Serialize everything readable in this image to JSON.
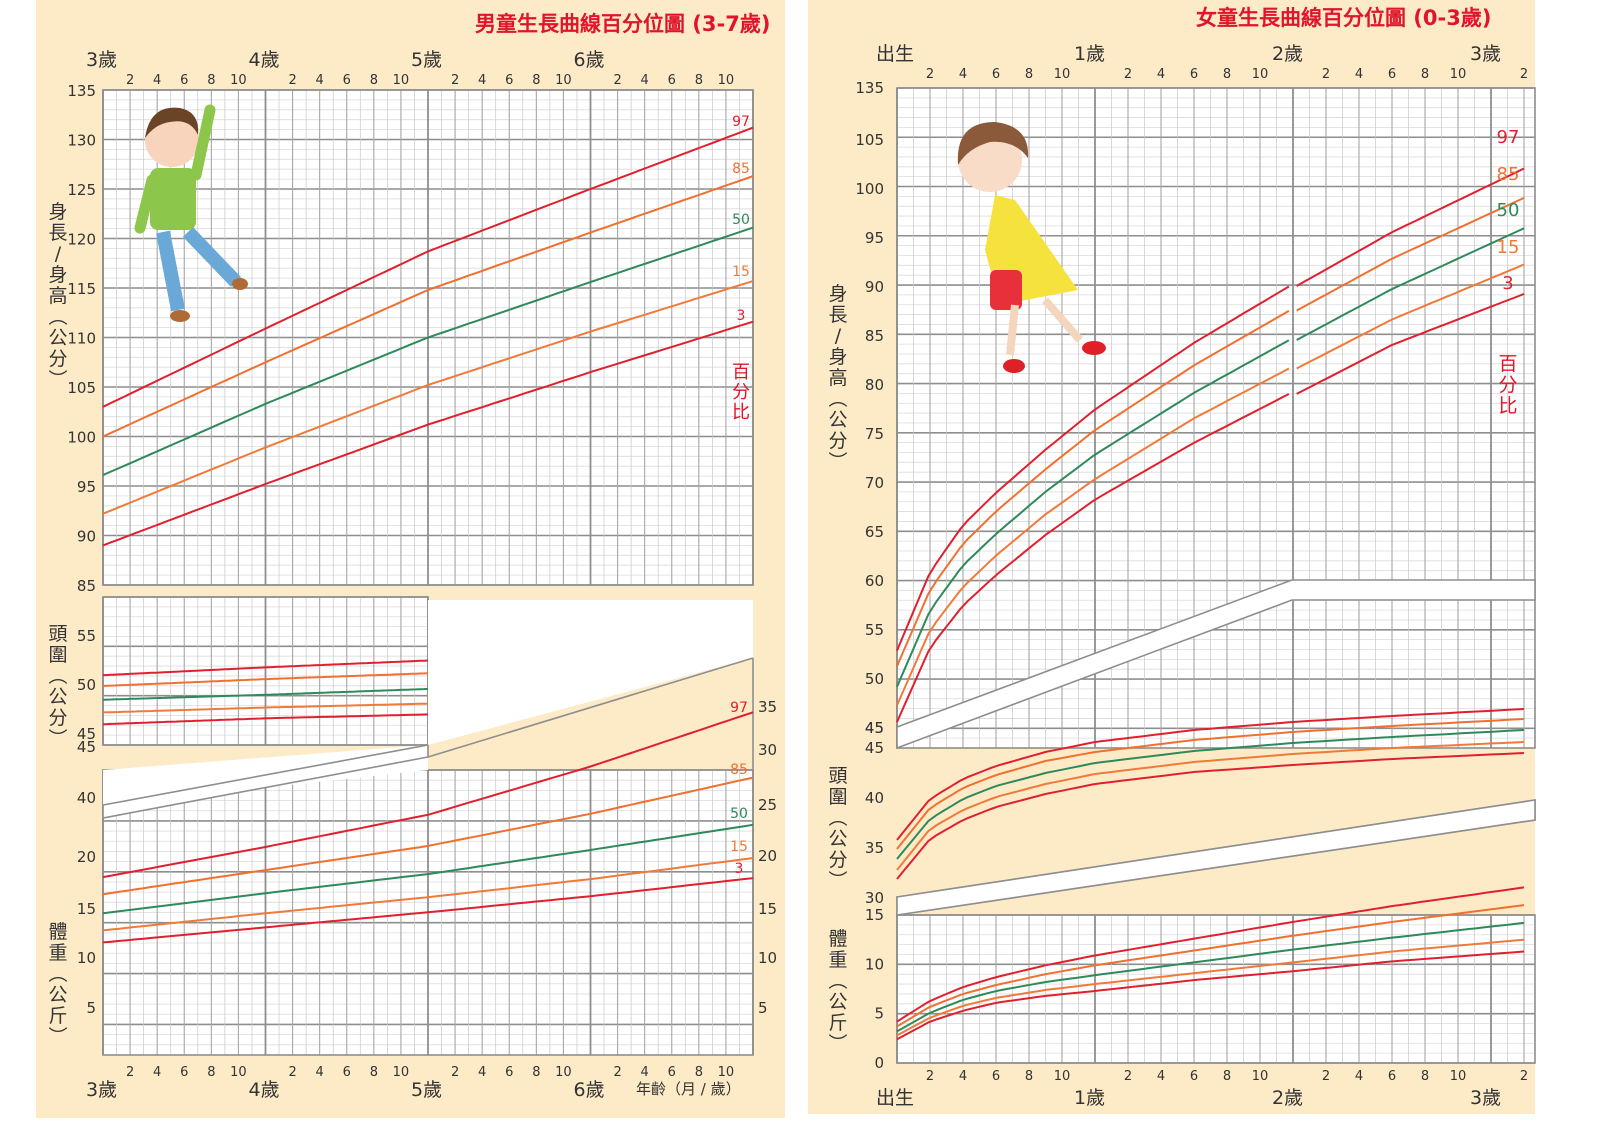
{
  "colors": {
    "background": "#fdebc8",
    "grid_major": "#8e8e8e",
    "grid_minor": "#c8c8c8",
    "grid_minor_h": "#dcdcdc",
    "p97": "#e0202e",
    "p85": "#f07030",
    "p50": "#2e8a5a",
    "p15": "#f07a3a",
    "p3": "#e0202e",
    "title": "#e0142a",
    "axis_text": "#333333"
  },
  "boy_chart": {
    "title": "男童生長曲線百分位圖 (3-7歲)",
    "year_labels_top": [
      "3歲",
      "4歲",
      "5歲",
      "6歲"
    ],
    "year_labels_bottom": [
      "3歲",
      "4歲",
      "5歲",
      "6歲"
    ],
    "month_ticks": [
      "2",
      "4",
      "6",
      "8",
      "10"
    ],
    "x_axis_label": "年齡（月 / 歲）",
    "height_axis_label": "身長/身高(公分)",
    "head_axis_label": "頭圍(公分)",
    "weight_axis_label": "體重(公斤)",
    "percentile_caption": "百分比",
    "height_ticks": [
      "135",
      "130",
      "125",
      "120",
      "115",
      "110",
      "105",
      "100",
      "95",
      "90",
      "85"
    ],
    "head_ticks": [
      "55",
      "50",
      "45"
    ],
    "weight_ticks_left": [
      "45",
      "40",
      "20",
      "15",
      "10",
      "5"
    ],
    "weight_ticks_right": [
      "35",
      "30",
      "25",
      "20",
      "15",
      "10",
      "5"
    ],
    "percentiles": [
      "97",
      "85",
      "50",
      "15",
      "3"
    ]
  },
  "girl_chart": {
    "title": "女童生長曲線百分位圖 (0-3歲)",
    "year_labels_top": [
      "出生",
      "1歲",
      "2歲",
      "3歲"
    ],
    "year_labels_bottom": [
      "出生",
      "1歲",
      "2歲",
      "3歲"
    ],
    "month_ticks": [
      "2",
      "4",
      "6",
      "8",
      "10"
    ],
    "trailing_tick": "2",
    "height_axis_label": "身長/身高(公分)",
    "head_axis_label": "頭圍(公分)",
    "weight_axis_label": "體重(公斤)",
    "percentile_caption": "百分比",
    "height_ticks": [
      "135",
      "105",
      "100",
      "95",
      "90",
      "85",
      "80",
      "75",
      "70",
      "65",
      "60",
      "55",
      "50",
      "45"
    ],
    "head_ticks": [
      "45",
      "40",
      "35",
      "30"
    ],
    "weight_ticks": [
      "15",
      "10",
      "5",
      "0"
    ],
    "percentiles": [
      "97",
      "85",
      "50",
      "15",
      "3"
    ]
  },
  "chart_data": [
    {
      "type": "line",
      "title": "男童生長曲線百分位圖 (3-7歲) — 身長/身高",
      "xlabel": "年齡（月 / 歲）",
      "ylabel": "身長/身高(公分)",
      "x_unit": "months",
      "x": [
        36,
        48,
        60,
        72,
        84
      ],
      "ylim": [
        85,
        135
      ],
      "series": [
        {
          "name": "97",
          "values": [
            103.0,
            110.9,
            118.7,
            125.0,
            131.2
          ]
        },
        {
          "name": "85",
          "values": [
            100.0,
            107.5,
            114.8,
            120.6,
            126.3
          ]
        },
        {
          "name": "50",
          "values": [
            96.1,
            103.3,
            110.0,
            115.6,
            121.1
          ]
        },
        {
          "name": "15",
          "values": [
            92.2,
            98.9,
            105.2,
            110.6,
            115.7
          ]
        },
        {
          "name": "3",
          "values": [
            89.0,
            95.2,
            101.2,
            106.5,
            111.6
          ]
        }
      ],
      "grid": true,
      "legend_position": "right-inline"
    },
    {
      "type": "line",
      "title": "男童生長曲線百分位圖 (3-7歲) — 頭圍",
      "ylabel": "頭圍(公分)",
      "x_unit": "months",
      "x": [
        36,
        48,
        60
      ],
      "ylim": [
        45,
        57
      ],
      "series": [
        {
          "name": "97",
          "values": [
            51.0,
            51.8,
            52.5
          ]
        },
        {
          "name": "85",
          "values": [
            49.9,
            50.6,
            51.2
          ]
        },
        {
          "name": "50",
          "values": [
            48.5,
            49.0,
            49.6
          ]
        },
        {
          "name": "15",
          "values": [
            47.2,
            47.7,
            48.1
          ]
        },
        {
          "name": "3",
          "values": [
            46.0,
            46.6,
            47.0
          ]
        }
      ],
      "grid": true
    },
    {
      "type": "line",
      "title": "男童生長曲線百分位圖 (3-7歲) — 體重",
      "ylabel": "體重(公斤)",
      "x_unit": "months",
      "x": [
        36,
        48,
        60,
        72,
        84
      ],
      "ylim": [
        0,
        35
      ],
      "series": [
        {
          "name": "97",
          "values": [
            18.0,
            21.0,
            24.2,
            29.0,
            34.4
          ]
        },
        {
          "name": "85",
          "values": [
            16.3,
            18.7,
            21.1,
            24.3,
            27.9
          ]
        },
        {
          "name": "50",
          "values": [
            14.4,
            16.4,
            18.3,
            20.7,
            23.2
          ]
        },
        {
          "name": "15",
          "values": [
            12.7,
            14.4,
            16.0,
            17.8,
            19.9
          ]
        },
        {
          "name": "3",
          "values": [
            11.5,
            13.0,
            14.5,
            16.1,
            17.9
          ]
        }
      ],
      "grid": true
    },
    {
      "type": "line",
      "title": "女童生長曲線百分位圖 (0-3歲) — 身長/身高",
      "ylabel": "身長/身高(公分)",
      "x_unit": "months",
      "x": [
        0,
        2,
        4,
        6,
        9,
        12,
        18,
        24,
        30,
        38
      ],
      "ylim": [
        45,
        105
      ],
      "series": [
        {
          "name": "97",
          "values": [
            52.9,
            60.9,
            65.7,
            69.0,
            73.4,
            77.5,
            84.3,
            90.3,
            96.0,
            102.5
          ]
        },
        {
          "name": "85",
          "values": [
            51.3,
            59.1,
            63.8,
            67.1,
            71.4,
            75.4,
            82.0,
            87.8,
            93.3,
            99.5
          ]
        },
        {
          "name": "50",
          "values": [
            49.2,
            57.0,
            61.6,
            64.8,
            69.1,
            72.9,
            79.2,
            84.8,
            90.2,
            96.4
          ]
        },
        {
          "name": "15",
          "values": [
            47.3,
            55.0,
            59.4,
            62.6,
            66.8,
            70.4,
            76.6,
            81.9,
            87.1,
            92.7
          ]
        },
        {
          "name": "3",
          "values": [
            45.6,
            53.2,
            57.5,
            60.6,
            64.7,
            68.3,
            74.1,
            79.3,
            84.5,
            89.7
          ]
        }
      ],
      "grid": true,
      "legend_position": "right-inline"
    },
    {
      "type": "line",
      "title": "女童生長曲線百分位圖 (0-3歲) — 頭圍",
      "ylabel": "頭圍(公分)",
      "x_unit": "months",
      "x": [
        0,
        2,
        4,
        6,
        9,
        12,
        18,
        24,
        30,
        38
      ],
      "ylim": [
        30,
        50
      ],
      "series": [
        {
          "name": "97",
          "values": [
            35.8,
            39.9,
            41.9,
            43.2,
            44.6,
            45.6,
            46.8,
            47.6,
            48.2,
            48.9
          ]
        },
        {
          "name": "85",
          "values": [
            34.9,
            39.0,
            41.0,
            42.3,
            43.7,
            44.6,
            45.8,
            46.6,
            47.2,
            47.9
          ]
        },
        {
          "name": "50",
          "values": [
            33.9,
            37.9,
            39.9,
            41.2,
            42.5,
            43.5,
            44.7,
            45.5,
            46.1,
            46.8
          ]
        },
        {
          "name": "15",
          "values": [
            32.8,
            36.9,
            38.8,
            40.1,
            41.4,
            42.4,
            43.6,
            44.4,
            45.0,
            45.6
          ]
        },
        {
          "name": "3",
          "values": [
            31.9,
            35.9,
            37.8,
            39.1,
            40.4,
            41.4,
            42.6,
            43.3,
            43.9,
            44.5
          ]
        }
      ],
      "grid": true
    },
    {
      "type": "line",
      "title": "女童生長曲線百分位圖 (0-3歲) — 體重",
      "ylabel": "體重(公斤)",
      "x_unit": "months",
      "x": [
        0,
        2,
        4,
        6,
        9,
        12,
        18,
        24,
        30,
        38
      ],
      "ylim": [
        0,
        15
      ],
      "series": [
        {
          "name": "97",
          "values": [
            4.2,
            6.3,
            7.7,
            8.7,
            9.9,
            10.9,
            12.6,
            14.3,
            15.9,
            17.8
          ]
        },
        {
          "name": "85",
          "values": [
            3.7,
            5.7,
            7.0,
            7.9,
            9.0,
            9.9,
            11.4,
            12.9,
            14.3,
            16.0
          ]
        },
        {
          "name": "50",
          "values": [
            3.2,
            5.1,
            6.4,
            7.3,
            8.2,
            8.9,
            10.2,
            11.5,
            12.7,
            14.2
          ]
        },
        {
          "name": "15",
          "values": [
            2.8,
            4.6,
            5.8,
            6.6,
            7.4,
            8.0,
            9.1,
            10.2,
            11.3,
            12.5
          ]
        },
        {
          "name": "3",
          "values": [
            2.4,
            4.2,
            5.3,
            6.1,
            6.8,
            7.3,
            8.4,
            9.3,
            10.3,
            11.3
          ]
        }
      ],
      "grid": true
    }
  ]
}
